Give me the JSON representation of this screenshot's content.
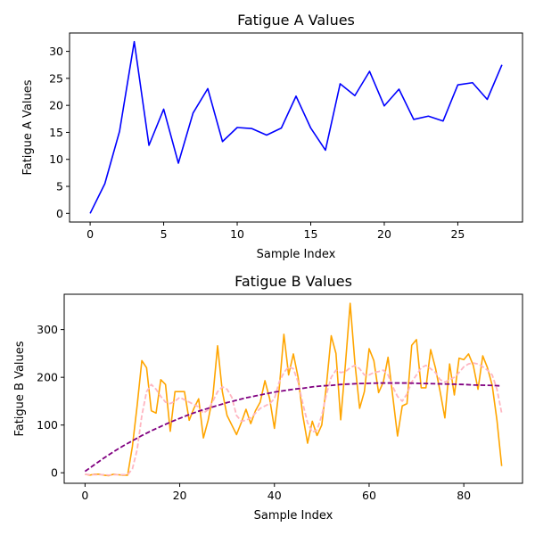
{
  "chart_data": [
    {
      "type": "line",
      "title": "Fatigue A Values",
      "xlabel": "Sample Index",
      "ylabel": "Fatigue A Values",
      "xlim": [
        -1.4,
        29.4
      ],
      "ylim": [
        -1.6,
        33.4
      ],
      "xticks": [
        0,
        5,
        10,
        15,
        20,
        25
      ],
      "yticks": [
        0,
        5,
        10,
        15,
        20,
        25,
        30
      ],
      "grid": false,
      "series": [
        {
          "color": "#0000ff",
          "style": "solid",
          "x": [
            0,
            1,
            2,
            3,
            4,
            5,
            6,
            7,
            8,
            9,
            10,
            11,
            12,
            13,
            14,
            15,
            16,
            17,
            18,
            19,
            20,
            21,
            22,
            23,
            24,
            25,
            26,
            27,
            28
          ],
          "y": [
            0,
            5.5,
            15.2,
            31.8,
            12.6,
            19.3,
            9.3,
            18.6,
            23.1,
            13.3,
            15.9,
            15.7,
            14.5,
            15.8,
            21.7,
            15.8,
            11.7,
            24.0,
            21.8,
            26.3,
            19.9,
            23.0,
            17.4,
            18.0,
            17.1,
            23.8,
            24.2,
            21.1,
            27.5
          ]
        }
      ]
    },
    {
      "type": "line",
      "title": "Fatigue B Values",
      "xlabel": "Sample Index",
      "ylabel": "Fatigue B Values",
      "xlim": [
        -4.4,
        92.4
      ],
      "ylim": [
        -22,
        374
      ],
      "xticks": [
        0,
        20,
        40,
        60,
        80
      ],
      "yticks": [
        0,
        100,
        200,
        300
      ],
      "grid": false,
      "series": [
        {
          "color": "#ffa500",
          "style": "solid",
          "x": [
            0,
            1,
            2,
            3,
            4,
            5,
            6,
            7,
            8,
            9,
            10,
            11,
            12,
            13,
            14,
            15,
            16,
            17,
            18,
            19,
            20,
            21,
            22,
            23,
            24,
            25,
            26,
            27,
            28,
            29,
            30,
            31,
            32,
            33,
            34,
            35,
            36,
            37,
            38,
            39,
            40,
            41,
            42,
            43,
            44,
            45,
            46,
            47,
            48,
            49,
            50,
            51,
            52,
            53,
            54,
            55,
            56,
            57,
            58,
            59,
            60,
            61,
            62,
            63,
            64,
            65,
            66,
            67,
            68,
            69,
            70,
            71,
            72,
            73,
            74,
            75,
            76,
            77,
            78,
            79,
            80,
            81,
            82,
            83,
            84,
            85,
            86,
            87,
            88
          ],
          "y": [
            -3,
            -5,
            -3,
            -3,
            -5,
            -6,
            -3,
            -4,
            -5,
            -5,
            55,
            140,
            235,
            220,
            130,
            125,
            195,
            185,
            87,
            170,
            170,
            170,
            110,
            135,
            155,
            73,
            110,
            160,
            266,
            170,
            120,
            100,
            80,
            105,
            133,
            103,
            130,
            148,
            193,
            155,
            93,
            175,
            290,
            205,
            249,
            200,
            120,
            62,
            108,
            78,
            100,
            185,
            287,
            250,
            111,
            228,
            355,
            230,
            135,
            170,
            260,
            235,
            168,
            190,
            242,
            160,
            77,
            140,
            145,
            267,
            279,
            178,
            178,
            258,
            220,
            170,
            115,
            228,
            163,
            240,
            237,
            249,
            225,
            175,
            245,
            220,
            183,
            110,
            14
          ]
        },
        {
          "color": "#ffb6c1",
          "style": "dashed",
          "x": [
            0,
            1,
            2,
            3,
            4,
            5,
            6,
            7,
            8,
            9,
            10,
            11,
            12,
            13,
            14,
            15,
            16,
            17,
            18,
            19,
            20,
            21,
            22,
            23,
            24,
            25,
            26,
            27,
            28,
            29,
            30,
            31,
            32,
            33,
            34,
            35,
            36,
            37,
            38,
            39,
            40,
            41,
            42,
            43,
            44,
            45,
            46,
            47,
            48,
            49,
            50,
            51,
            52,
            53,
            54,
            55,
            56,
            57,
            58,
            59,
            60,
            61,
            62,
            63,
            64,
            65,
            66,
            67,
            68,
            69,
            70,
            71,
            72,
            73,
            74,
            75,
            76,
            77,
            78,
            79,
            80,
            81,
            82,
            83,
            84,
            85,
            86,
            87,
            88
          ],
          "y": [
            -3,
            -4,
            -4,
            -4,
            -4,
            -5,
            -4,
            -4,
            -4,
            -4,
            8,
            48,
            120,
            170,
            185,
            175,
            160,
            148,
            145,
            150,
            158,
            153,
            148,
            143,
            138,
            125,
            132,
            150,
            170,
            180,
            175,
            158,
            120,
            108,
            110,
            115,
            125,
            135,
            140,
            145,
            155,
            190,
            210,
            222,
            218,
            190,
            145,
            105,
            85,
            90,
            120,
            165,
            200,
            215,
            210,
            212,
            220,
            225,
            218,
            205,
            205,
            210,
            212,
            215,
            205,
            180,
            160,
            150,
            165,
            190,
            205,
            220,
            225,
            218,
            210,
            195,
            190,
            195,
            200,
            210,
            222,
            228,
            230,
            228,
            222,
            215,
            205,
            175,
            125
          ]
        },
        {
          "color": "#800080",
          "style": "dashed",
          "x": [
            0,
            2,
            4,
            6,
            8,
            10,
            12,
            14,
            16,
            18,
            20,
            22,
            24,
            26,
            28,
            30,
            32,
            34,
            36,
            38,
            40,
            42,
            44,
            46,
            48,
            50,
            52,
            54,
            56,
            58,
            60,
            62,
            64,
            66,
            68,
            70,
            72,
            74,
            76,
            78,
            80,
            82,
            84,
            86,
            88
          ],
          "y": [
            3,
            17,
            31,
            44,
            56,
            67,
            78,
            88,
            97,
            106,
            114,
            122,
            129,
            135,
            141,
            147,
            152,
            157,
            161,
            165,
            169,
            172,
            175,
            177,
            180,
            182,
            183,
            185,
            186,
            187,
            187.5,
            188,
            188,
            188,
            188,
            187.5,
            187,
            186.5,
            186,
            185.5,
            185,
            184,
            183.5,
            183,
            182
          ]
        }
      ]
    }
  ]
}
